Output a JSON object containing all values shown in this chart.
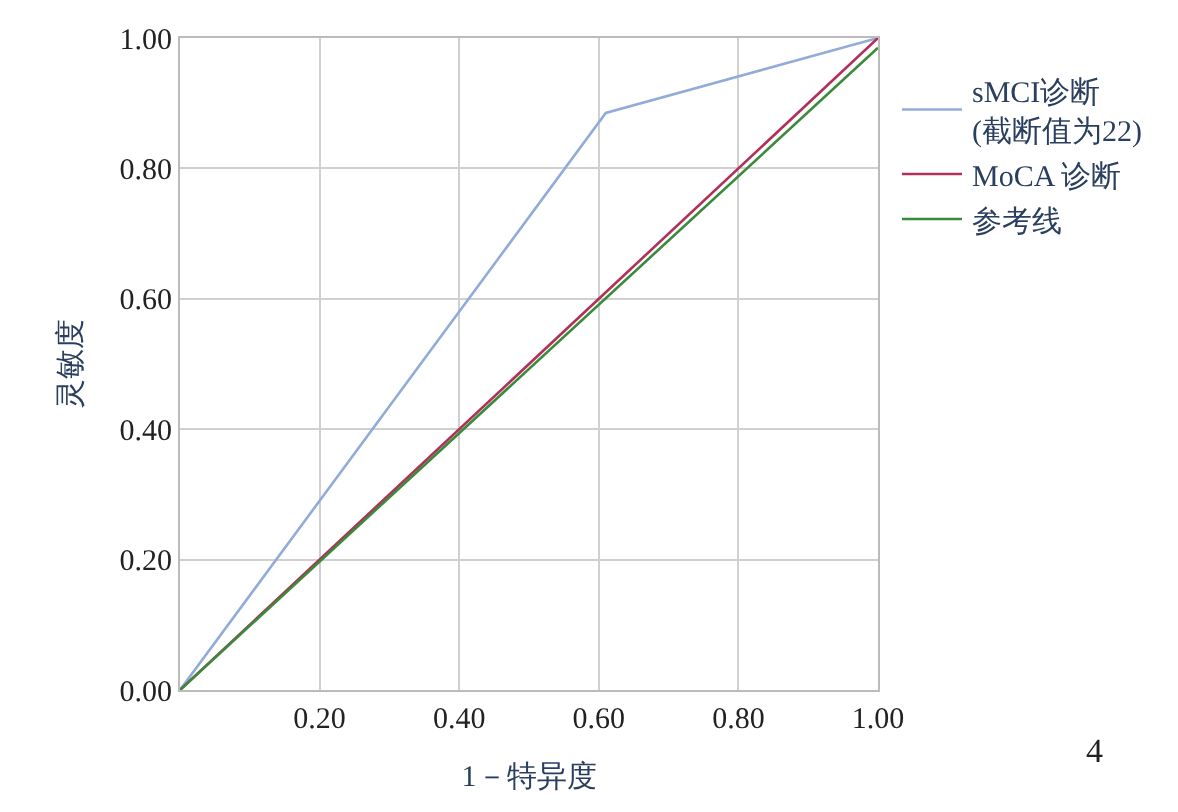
{
  "chart_data": {
    "type": "line",
    "xlabel": "1－特异度",
    "ylabel": "灵敏度",
    "xlim": [
      0,
      1
    ],
    "ylim": [
      0,
      1
    ],
    "xticks": [
      {
        "value": 0.2,
        "label": "0.20"
      },
      {
        "value": 0.4,
        "label": "0.40"
      },
      {
        "value": 0.6,
        "label": "0.60"
      },
      {
        "value": 0.8,
        "label": "0.80"
      },
      {
        "value": 1,
        "label": "1.00"
      }
    ],
    "yticks": [
      {
        "value": 0,
        "label": "0.00"
      },
      {
        "value": 0.2,
        "label": "0.20"
      },
      {
        "value": 0.4,
        "label": "0.40"
      },
      {
        "value": 0.6,
        "label": "0.60"
      },
      {
        "value": 0.8,
        "label": "0.80"
      },
      {
        "value": 1,
        "label": "1.00"
      }
    ],
    "grid": true,
    "legend": "right",
    "marker": "none",
    "line_style": "solid",
    "series": [
      {
        "name": "sMCI诊断\n(截断值为22)",
        "color": "#92acd8",
        "x": [
          0,
          0.61,
          1
        ],
        "values": [
          0,
          0.885,
          1
        ]
      },
      {
        "name": "MoCA 诊断",
        "color": "#b0305a",
        "x": [
          0,
          1
        ],
        "values": [
          0,
          1
        ]
      },
      {
        "name": "参考线",
        "color": "#3a8a3a",
        "x": [
          0,
          1
        ],
        "values": [
          0,
          0.985
        ]
      }
    ],
    "annotations": [
      "4"
    ]
  }
}
